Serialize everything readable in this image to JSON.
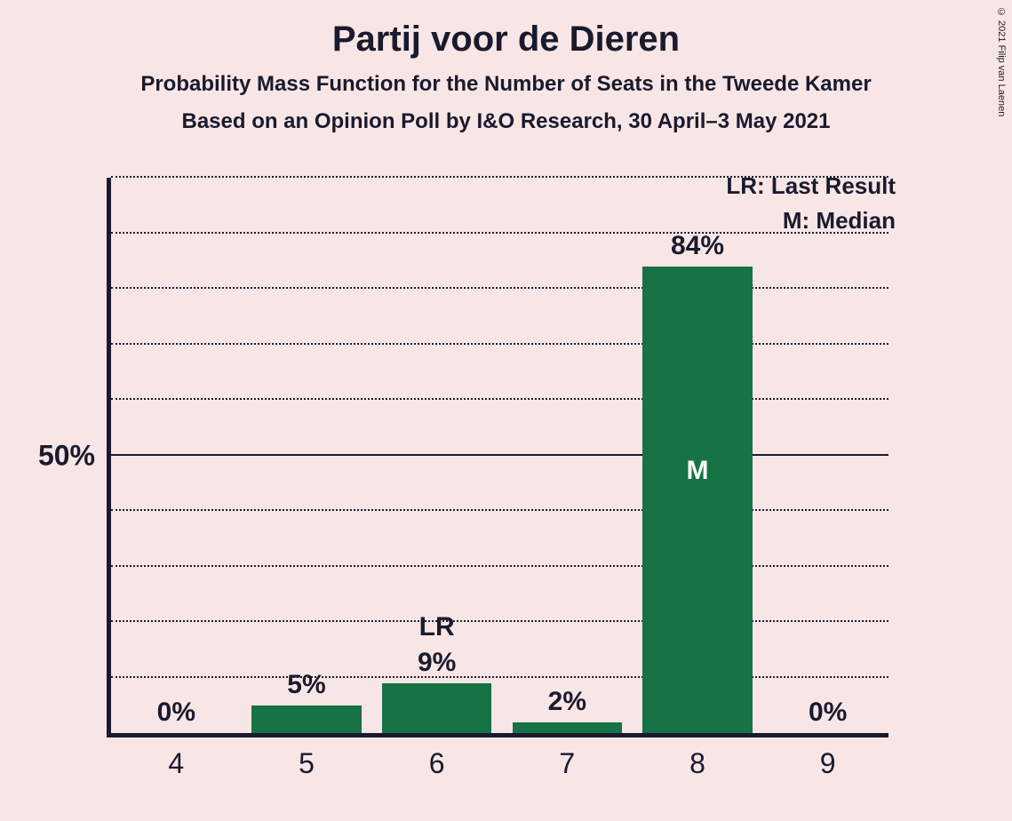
{
  "title": "Partij voor de Dieren",
  "subtitle1": "Probability Mass Function for the Number of Seats in the Tweede Kamer",
  "subtitle2": "Based on an Opinion Poll by I&O Research, 30 April–3 May 2021",
  "copyright": "© 2021 Filip van Laenen",
  "legend": {
    "lr": "LR: Last Result",
    "m": "M: Median"
  },
  "chart": {
    "type": "bar",
    "background_color": "#f8e6e6",
    "axis_color": "#1a1a2e",
    "grid_color": "#1a1a2e",
    "bar_color": "#177245",
    "text_color": "#1a1a2e",
    "marker_text_color": "#ffffff",
    "title_fontsize": 40,
    "subtitle_fontsize": 24,
    "label_fontsize": 32,
    "value_fontsize": 30,
    "ylim": [
      0,
      100
    ],
    "ytick_step": 10,
    "ytick_labeled": [
      50
    ],
    "ylabel_50": "50%",
    "categories": [
      "4",
      "5",
      "6",
      "7",
      "8",
      "9"
    ],
    "values": [
      0,
      5,
      9,
      2,
      84,
      0
    ],
    "value_labels": [
      "0%",
      "5%",
      "9%",
      "2%",
      "84%",
      "0%"
    ],
    "tags": [
      null,
      null,
      "LR",
      null,
      null,
      null
    ],
    "markers": [
      null,
      null,
      null,
      null,
      "M",
      null
    ],
    "bar_width_ratio": 0.84
  }
}
